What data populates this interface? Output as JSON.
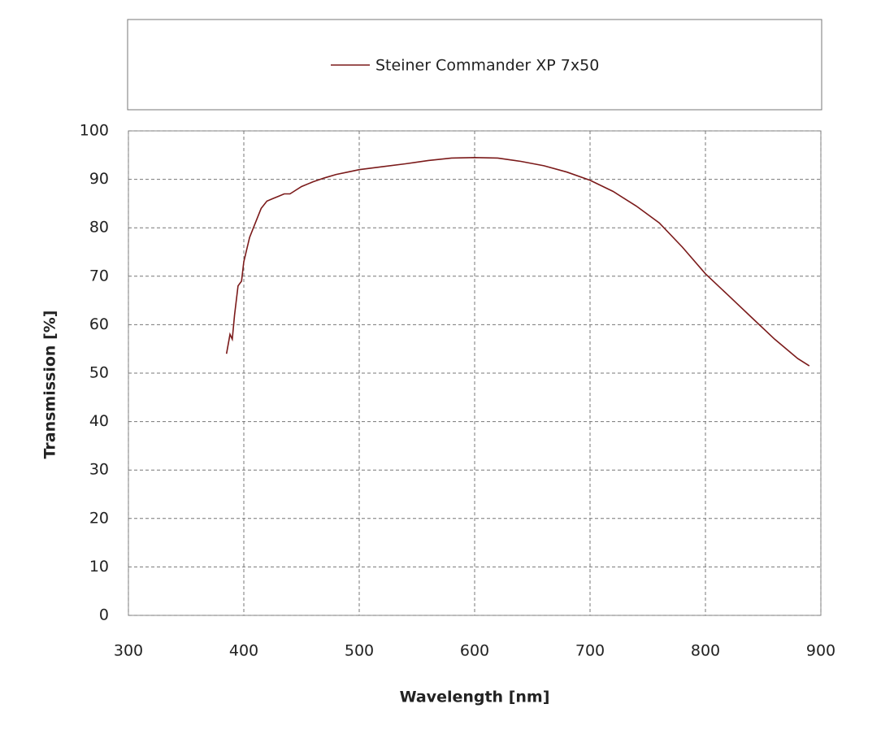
{
  "chart_data": {
    "type": "line",
    "xlabel": "Wavelength [nm]",
    "ylabel": "Transmission [%]",
    "xlim": [
      300,
      900
    ],
    "xticks": [
      300,
      400,
      500,
      600,
      700,
      800,
      900
    ],
    "ylim": [
      0,
      100
    ],
    "yticks": [
      0,
      10,
      20,
      30,
      40,
      50,
      60,
      70,
      80,
      90,
      100
    ],
    "grid": true,
    "legend": "top",
    "series": [
      {
        "name": "Steiner Commander XP 7x50",
        "color": "#7b1a1a",
        "x": [
          385,
          388,
          390,
          392,
          395,
          398,
          400,
          405,
          410,
          415,
          420,
          425,
          430,
          435,
          440,
          450,
          460,
          470,
          480,
          490,
          500,
          520,
          540,
          560,
          580,
          600,
          620,
          640,
          660,
          680,
          700,
          720,
          740,
          760,
          780,
          800,
          820,
          840,
          860,
          880,
          890
        ],
        "values": [
          54,
          58,
          57,
          62,
          68,
          69,
          73,
          78,
          81,
          84,
          85.5,
          86,
          86.5,
          87,
          87,
          88.5,
          89.5,
          90.3,
          91,
          91.5,
          92,
          92.6,
          93.2,
          93.9,
          94.4,
          94.5,
          94.4,
          93.7,
          92.8,
          91.5,
          89.8,
          87.5,
          84.5,
          81,
          76,
          70.5,
          66,
          61.5,
          57,
          53,
          51.5
        ]
      }
    ]
  }
}
